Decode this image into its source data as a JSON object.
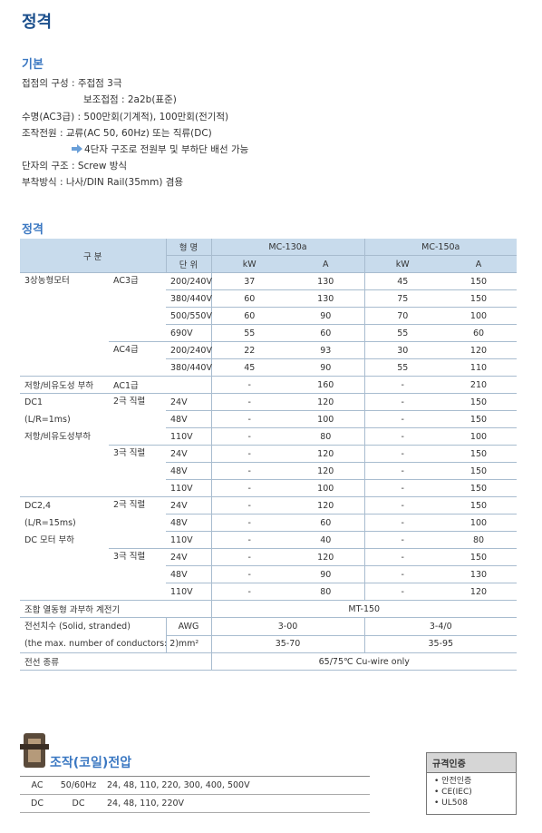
{
  "title": "정격",
  "basic": {
    "heading": "기본",
    "lines": [
      "접점의 구성 : 주접점 3극",
      "보조접점 : 2a2b(표준)",
      "수명(AC3급) : 500만회(기계적), 100만회(전기적)",
      "조작전원 : 교류(AC 50, 60Hz) 또는 직류(DC)",
      "4단자 구조로 전원부 및 부하단 배선 가능",
      "단자의 구조 : Screw 방식",
      "부착방식 : 나사/DIN Rail(35mm) 겸용"
    ]
  },
  "rating": {
    "heading": "정격",
    "header": {
      "group": "구 분",
      "model_label": "형 명",
      "models": [
        "MC-130a",
        "MC-150a"
      ],
      "unit_label": "단 위",
      "units": [
        "kW",
        "A",
        "kW",
        "A"
      ]
    },
    "rows": [
      [
        "3상농형모터",
        "AC3급",
        "200/240V",
        "37",
        "130",
        "45",
        "150"
      ],
      [
        "380/440V",
        "60",
        "130",
        "75",
        "150"
      ],
      [
        "500/550V",
        "60",
        "90",
        "70",
        "100"
      ],
      [
        "690V",
        "55",
        "60",
        "55",
        "60"
      ],
      [
        "AC4급",
        "200/240V",
        "22",
        "93",
        "30",
        "120"
      ],
      [
        "380/440V",
        "45",
        "90",
        "55",
        "110"
      ],
      [
        "저항/비유도성 부하",
        "AC1급",
        "-",
        "160",
        "-",
        "210"
      ],
      [
        [
          "DC1",
          "(L/R=1ms)",
          "저항/비유도성부하"
        ],
        "2극 직렬",
        "24V",
        "-",
        "120",
        "-",
        "150"
      ],
      [
        "48V",
        "-",
        "100",
        "-",
        "150"
      ],
      [
        "110V",
        "-",
        "80",
        "-",
        "100"
      ],
      [
        "3극 직렬",
        "24V",
        "-",
        "120",
        "-",
        "150"
      ],
      [
        "48V",
        "-",
        "120",
        "-",
        "150"
      ],
      [
        "110V",
        "-",
        "100",
        "-",
        "150"
      ],
      [
        [
          "DC2,4",
          "(L/R=15ms)",
          "DC 모터 부하"
        ],
        "2극 직렬",
        "24V",
        "-",
        "120",
        "-",
        "150"
      ],
      [
        "48V",
        "-",
        "60",
        "-",
        "100"
      ],
      [
        "110V",
        "-",
        "40",
        "-",
        "80"
      ],
      [
        "3극 직렬",
        "24V",
        "-",
        "120",
        "-",
        "150"
      ],
      [
        "48V",
        "-",
        "90",
        "-",
        "130"
      ],
      [
        "110V",
        "-",
        "80",
        "-",
        "120"
      ],
      [
        "조합 열동형 과부하 계전기",
        "MT-150"
      ],
      [
        [
          "전선치수 (Solid, stranded)",
          "(the max. number of conductors: 2)"
        ],
        "AWG",
        "3-00",
        "3-4/0"
      ],
      [
        "mm²",
        "35-70",
        "35-95"
      ],
      [
        "전선 종류",
        "65/75℃ Cu-wire only"
      ]
    ]
  },
  "coil": {
    "heading": "조작(코일)전압",
    "rows": [
      [
        "AC",
        "50/60Hz",
        "24, 48, 110, 220, 300, 400, 500V"
      ],
      [
        "DC",
        "DC",
        "24, 48, 110, 220V"
      ]
    ]
  },
  "certification": {
    "heading": "규격인증",
    "items": [
      "안전인증",
      "CE(IEC)",
      "UL508"
    ]
  }
}
